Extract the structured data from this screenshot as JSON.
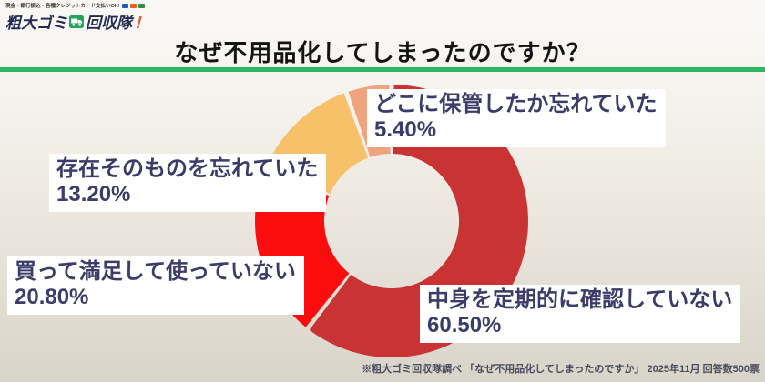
{
  "header": {
    "logo": {
      "tagline": "現金・銀行振込・各種クレジットカード支払いOK!",
      "brand_part1": "粗大ゴミ",
      "brand_part2": "回収隊",
      "brand_exclaim": "！",
      "payment_icons": [
        "visa-icon",
        "mastercard-icon",
        "jcb-icon"
      ]
    },
    "title": "なぜ不用品化してしまったのですか？",
    "accent_color": "#2db863"
  },
  "chart_data": {
    "type": "pie",
    "donut": true,
    "start_angle_deg": 0,
    "direction": "clockwise",
    "title": "なぜ不用品化してしまったのですか？",
    "legend_position": "callout-boxes",
    "segments": [
      {
        "label": "中身を定期的に確認していない",
        "value": 60.5,
        "display": "60.50%",
        "color": "#c93333"
      },
      {
        "label": "買って満足して使っていない",
        "value": 20.8,
        "display": "20.80%",
        "color": "#fb0d0d"
      },
      {
        "label": "存在そのものを忘れていた",
        "value": 13.2,
        "display": "13.20%",
        "color": "#f7c169"
      },
      {
        "label": "どこに保管したか忘れていた",
        "value": 5.4,
        "display": "5.40%",
        "color": "#efa47d"
      }
    ]
  },
  "footer": {
    "source_note": "※粗大ゴミ回収隊調べ 「なぜ不用品化してしまったのですか」 2025年11月 回答数500票"
  }
}
